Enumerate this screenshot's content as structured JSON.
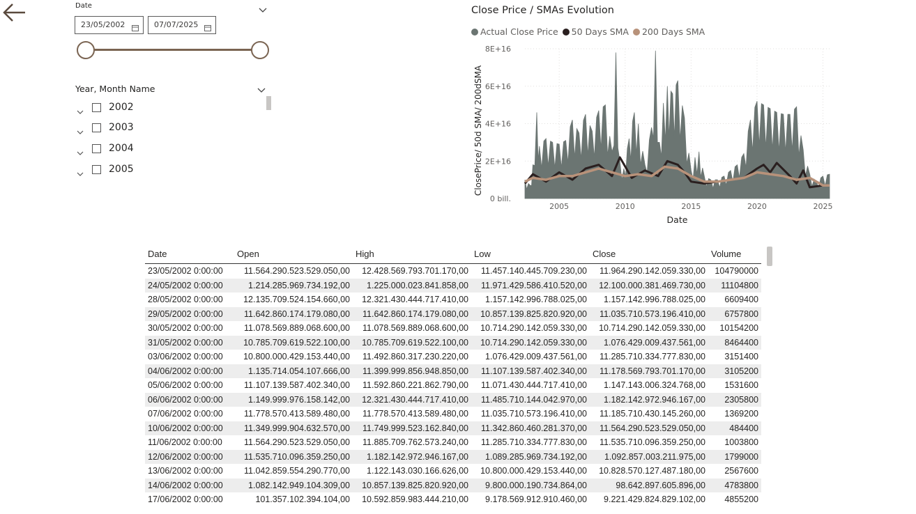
{
  "nav": {
    "back_icon": "arrow-left-icon"
  },
  "date_slicer": {
    "title": "Date",
    "start": "23/05/2002",
    "end": "07/07/2025",
    "range_fraction": [
      0,
      1
    ]
  },
  "year_slicer": {
    "title": "Year, Month Name",
    "items": [
      {
        "label": "2002",
        "checked": false
      },
      {
        "label": "2003",
        "checked": false
      },
      {
        "label": "2004",
        "checked": false
      },
      {
        "label": "2005",
        "checked": false
      }
    ]
  },
  "chart": {
    "title": "Close Price / SMAs Evolution",
    "legend": [
      {
        "label": "Actual Close Price",
        "color": "#6b7572"
      },
      {
        "label": "50 Days SMA",
        "color": "#2a1f1f"
      },
      {
        "label": "200 Days SMA",
        "color": "#b8927a"
      }
    ],
    "xlabel": "Date",
    "ylabel": "ClosePrice/ 50d SMA/ 200dSMA",
    "yticks": [
      "0 bill.",
      "2E+16",
      "4E+16",
      "6E+16",
      "8E+16"
    ],
    "xticks": [
      "2005",
      "2010",
      "2015",
      "2020",
      "2025"
    ]
  },
  "chart_data": {
    "type": "area",
    "title": "Close Price / SMAs Evolution",
    "xlabel": "Date",
    "ylabel": "ClosePrice/ 50d SMA/ 200dSMA",
    "xlim": [
      2002.4,
      2025.5
    ],
    "ylim": [
      0,
      8e+16
    ],
    "grid": true,
    "legend_position": "top-left",
    "series": [
      {
        "name": "Actual Close Price",
        "x": [
          2002.4,
          2002.8,
          2003.0,
          2003.3,
          2003.5,
          2004.0,
          2004.5,
          2005.0,
          2005.5,
          2006.0,
          2006.5,
          2007.0,
          2007.5,
          2008.0,
          2008.5,
          2009.0,
          2009.3,
          2009.6,
          2009.9,
          2010.3,
          2010.7,
          2011.0,
          2011.5,
          2012.0,
          2012.3,
          2012.6,
          2012.9,
          2013.2,
          2013.6,
          2014.0,
          2014.5,
          2015.0,
          2015.3,
          2015.6,
          2016.0,
          2016.5,
          2017.0,
          2017.5,
          2018.0,
          2018.5,
          2019.0,
          2019.5,
          2020.0,
          2020.5,
          2021.0,
          2021.5,
          2022.0,
          2022.5,
          2023.0,
          2023.5,
          2024.0,
          2024.5,
          2025.0,
          2025.5
        ],
        "y": [
          1e+16,
          7000000000000000.0,
          1.8e+16,
          4.6e+16,
          2.8e+16,
          3.2e+16,
          3e+16,
          2.9e+16,
          3.1e+16,
          4.2e+16,
          3.5e+16,
          4.5e+16,
          3.6e+16,
          4.7e+16,
          5e+16,
          2.5e+16,
          7.8e+16,
          2e+16,
          1.6e+16,
          3.2e+16,
          4.6e+16,
          4e+16,
          1.8e+16,
          3.8e+16,
          7.9e+16,
          3e+16,
          5.1e+16,
          6e+16,
          5.6e+16,
          6.3e+16,
          4.3e+16,
          1.5e+16,
          2.2e+16,
          2.5e+16,
          1.2e+16,
          1e+16,
          1e+16,
          1.2e+16,
          1.5e+16,
          1.8e+16,
          2.4e+16,
          4.2e+16,
          5.2e+16,
          5e+16,
          4.8e+16,
          4.6e+16,
          4.5e+16,
          4.5e+16,
          4.9e+16,
          2.6e+16,
          1.3e+16,
          9000000000000000.0,
          1.2e+16,
          1.3e+16
        ]
      },
      {
        "name": "50 Days SMA",
        "x": [
          2002.4,
          2003.0,
          2004.0,
          2005.0,
          2006.0,
          2007.0,
          2008.0,
          2009.0,
          2009.6,
          2010.5,
          2011.5,
          2012.5,
          2013.2,
          2014.0,
          2014.5,
          2015.0,
          2016.0,
          2017.0,
          2018.0,
          2019.0,
          2020.0,
          2020.5,
          2021.0,
          2021.5,
          2022.5,
          2023.0,
          2023.5,
          2024.0,
          2025.0,
          2025.5
        ],
        "y": [
          8000000000000000.0,
          1.3e+16,
          9000000000000000.0,
          1.4e+16,
          1e+16,
          1.6e+16,
          1.8e+16,
          1.2e+16,
          2.2e+16,
          1.1e+16,
          1.5e+16,
          1.2e+16,
          2e+16,
          1.8e+16,
          1.4e+16,
          9000000000000000.0,
          8000000000000000.0,
          9000000000000000.0,
          1e+16,
          1.1e+16,
          1.6e+16,
          1.8e+16,
          1.4e+16,
          1.9e+16,
          1.2e+16,
          8000000000000000.0,
          1.5e+16,
          6000000000000000.0,
          7000000000000000.0,
          7000000000000000.0
        ]
      },
      {
        "name": "200 Days SMA",
        "x": [
          2002.4,
          2003.0,
          2004.0,
          2005.0,
          2006.0,
          2007.0,
          2008.0,
          2009.0,
          2010.0,
          2011.0,
          2012.0,
          2013.0,
          2014.0,
          2015.0,
          2016.0,
          2017.0,
          2018.0,
          2019.0,
          2020.0,
          2021.0,
          2022.0,
          2023.0,
          2024.0,
          2025.0,
          2025.5
        ],
        "y": [
          9000000000000000.0,
          1.1e+16,
          1e+16,
          1.2e+16,
          1.2e+16,
          1.4e+16,
          1.6e+16,
          1.4e+16,
          1.2e+16,
          1.3e+16,
          1.2e+16,
          1.7e+16,
          1.6e+16,
          1.2e+16,
          9000000000000000.0,
          9000000000000000.0,
          1e+16,
          1.1e+16,
          1.4e+16,
          1.3e+16,
          1.2e+16,
          1e+16,
          1.1e+16,
          7000000000000000.0,
          7000000000000000.0
        ]
      }
    ]
  },
  "table": {
    "columns": [
      "Date",
      "Open",
      "High",
      "Low",
      "Close",
      "Volume"
    ],
    "rows": [
      [
        "23/05/2002 0:00:00",
        "11.564.290.523.529.050,00",
        "12.428.569.793.701.170,00",
        "11.457.140.445.709.230,00",
        "11.964.290.142.059.330,00",
        "104790000"
      ],
      [
        "24/05/2002 0:00:00",
        "1.214.285.969.734.192,00",
        "1.225.000.023.841.858,00",
        "11.971.429.586.410.520,00",
        "12.100.000.381.469.730,00",
        "11104800"
      ],
      [
        "28/05/2002 0:00:00",
        "12.135.709.524.154.660,00",
        "12.321.430.444.717.410,00",
        "1.157.142.996.788.025,00",
        "1.157.142.996.788.025,00",
        "6609400"
      ],
      [
        "29/05/2002 0:00:00",
        "11.642.860.174.179.080,00",
        "11.642.860.174.179.080,00",
        "10.857.139.825.820.920,00",
        "11.035.710.573.196.410,00",
        "6757800"
      ],
      [
        "30/05/2002 0:00:00",
        "11.078.569.889.068.600,00",
        "11.078.569.889.068.600,00",
        "10.714.290.142.059.330,00",
        "10.714.290.142.059.330,00",
        "10154200"
      ],
      [
        "31/05/2002 0:00:00",
        "10.785.709.619.522.100,00",
        "10.785.709.619.522.100,00",
        "10.714.290.142.059.330,00",
        "1.076.429.009.437.561,00",
        "8464400"
      ],
      [
        "03/06/2002 0:00:00",
        "10.800.000.429.153.440,00",
        "11.492.860.317.230.220,00",
        "1.076.429.009.437.561,00",
        "11.285.710.334.777.830,00",
        "3151400"
      ],
      [
        "04/06/2002 0:00:00",
        "1.135.714.054.107.666,00",
        "11.399.999.856.948.850,00",
        "11.107.139.587.402.340,00",
        "11.178.569.793.701.170,00",
        "3105200"
      ],
      [
        "05/06/2002 0:00:00",
        "11.107.139.587.402.340,00",
        "11.592.860.221.862.790,00",
        "11.071.430.444.717.410,00",
        "1.147.143.006.324.768,00",
        "1531600"
      ],
      [
        "06/06/2002 0:00:00",
        "1.149.999.976.158.142,00",
        "12.321.430.444.717.410,00",
        "11.485.710.144.042.970,00",
        "1.182.142.972.946.167,00",
        "2305800"
      ],
      [
        "07/06/2002 0:00:00",
        "11.778.570.413.589.480,00",
        "11.778.570.413.589.480,00",
        "11.035.710.573.196.410,00",
        "11.185.710.430.145.260,00",
        "1369200"
      ],
      [
        "10/06/2002 0:00:00",
        "11.349.999.904.632.570,00",
        "11.749.999.523.162.840,00",
        "11.342.860.460.281.370,00",
        "11.564.290.523.529.050,00",
        "484400"
      ],
      [
        "11/06/2002 0:00:00",
        "11.564.290.523.529.050,00",
        "11.885.709.762.573.240,00",
        "11.285.710.334.777.830,00",
        "11.535.710.096.359.250,00",
        "1003800"
      ],
      [
        "12/06/2002 0:00:00",
        "11.535.710.096.359.250,00",
        "1.182.142.972.946.167,00",
        "1.089.285.969.734.192,00",
        "1.092.857.003.211.975,00",
        "1799000"
      ],
      [
        "13/06/2002 0:00:00",
        "11.042.859.554.290.770,00",
        "1.122.143.030.166.626,00",
        "10.800.000.429.153.440,00",
        "10.828.570.127.487.180,00",
        "2567600"
      ],
      [
        "14/06/2002 0:00:00",
        "1.082.142.949.104.309,00",
        "10.857.139.825.820.920,00",
        "9.800.000.190.734.864,00",
        "98.642.897.605.896,00",
        "4783800"
      ],
      [
        "17/06/2002 0:00:00",
        "101.357.102.394.104,00",
        "10.592.859.983.444.210,00",
        "9.178.569.912.910.460,00",
        "9.221.429.824.829.102,00",
        "4855200"
      ]
    ]
  }
}
